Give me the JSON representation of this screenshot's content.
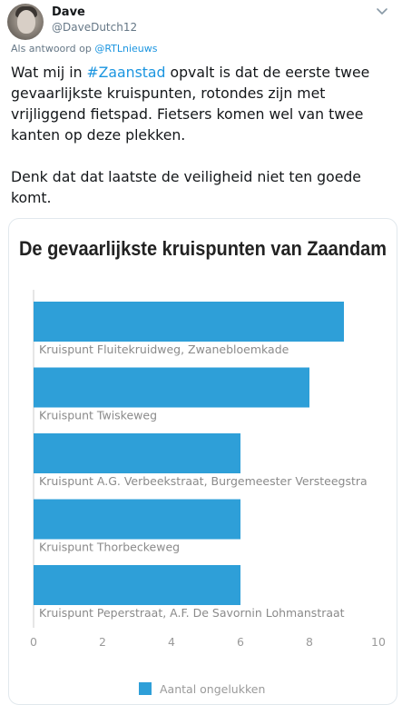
{
  "tweet": {
    "display_name": "Dave",
    "handle": "@DaveDutch12",
    "reply_prefix": "Als antwoord op ",
    "reply_to": "@RTLnieuws",
    "text_before_hashtag": "Wat mij in ",
    "hashtag": "#Zaanstad",
    "text_after_hashtag": " opvalt is dat de eerste twee\ngevaarlijkste kruispunten, rotondes zijn met\nvrijliggend fietspad. Fietsers komen wel van twee\nkanten op deze plekken.\n\nDenk dat dat laatste de veiligheid niet ten goede\nkomt.",
    "hashtag_color": "#1b95e0"
  },
  "icons": {
    "more": "more-icon"
  },
  "chart_data": {
    "type": "bar",
    "orientation": "horizontal",
    "title": "De gevaarlijkste kruispunten van Zaandam",
    "categories": [
      "Kruispunt Fluitekruidweg, Zwanebloemkade",
      "Kruispunt Twiskeweg",
      "Kruispunt A.G. Verbeekstraat, Burgemeester Versteegstra",
      "Kruispunt Thorbeckeweg",
      "Kruispunt Peperstraat, A.F. De Savornin Lohmanstraat"
    ],
    "series": [
      {
        "name": "Aantal ongelukken",
        "values": [
          9,
          8,
          6,
          6,
          6
        ],
        "color": "#2e9fd8"
      }
    ],
    "xlim": [
      0,
      10
    ],
    "xticks": [
      "0",
      "2",
      "4",
      "6",
      "8",
      "10"
    ],
    "grid": false,
    "legend": "bottom"
  }
}
